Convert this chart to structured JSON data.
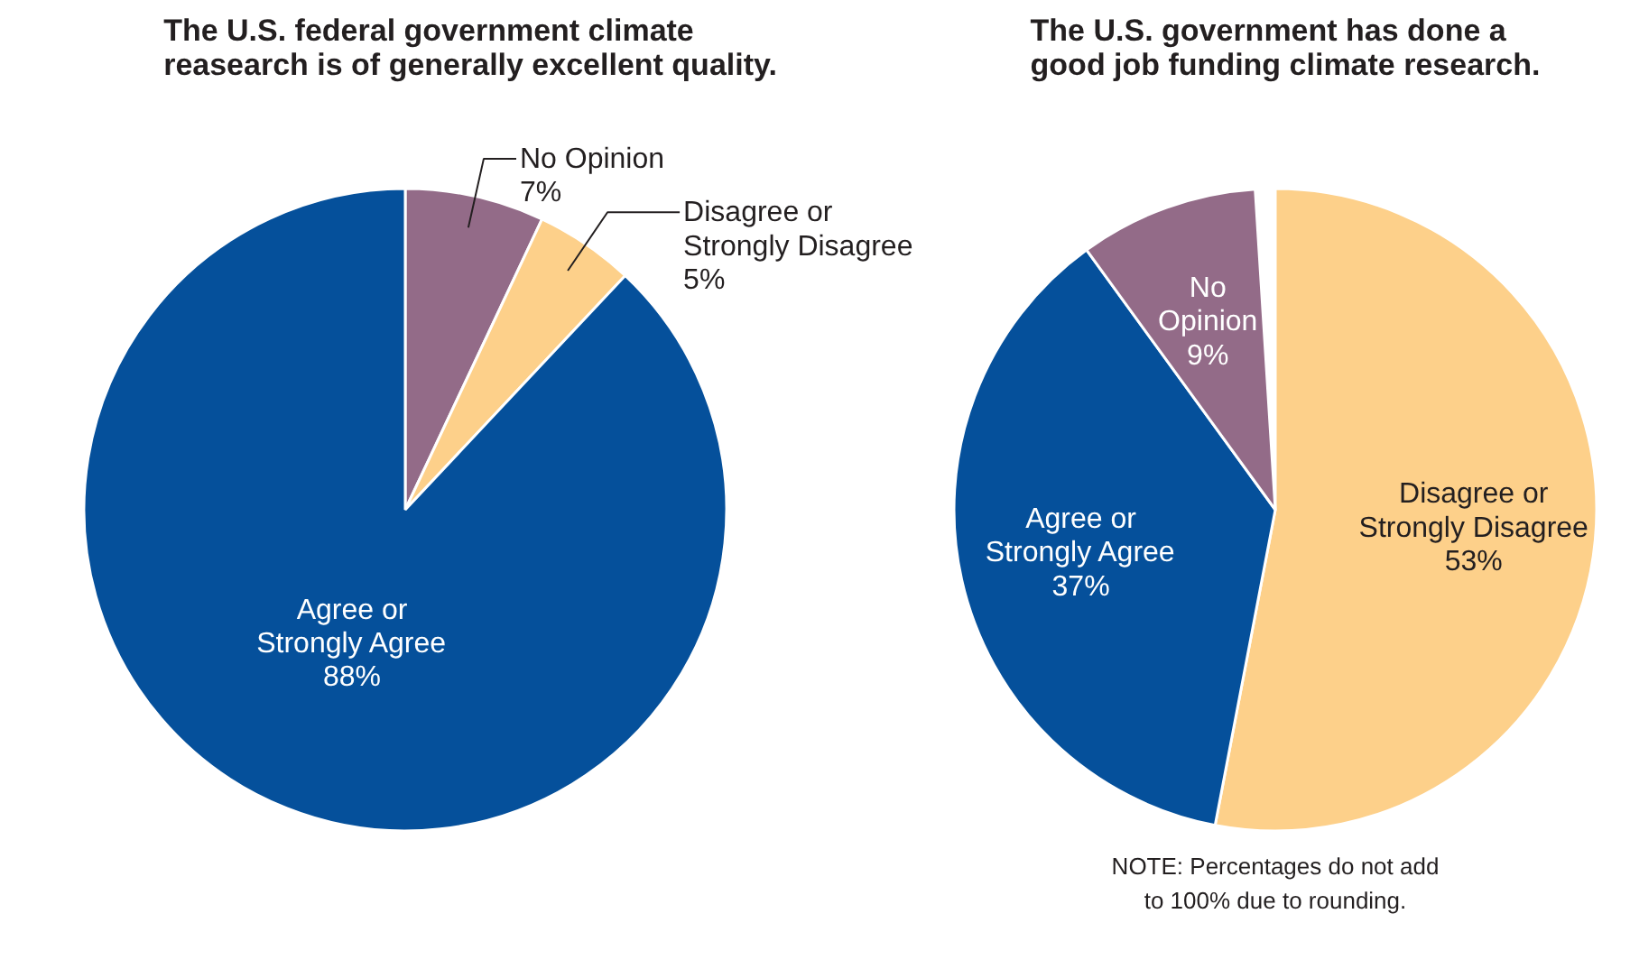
{
  "chart_data": [
    {
      "type": "pie",
      "title": "The U.S. federal government climate\nreasearch is of generally excellent quality.",
      "categories": [
        "No Opinion",
        "Disagree or\nStrongly Disagree",
        "Agree or\nStrongly Agree"
      ],
      "values": [
        7,
        5,
        88
      ],
      "colors": [
        "#936b88",
        "#fdd08a",
        "#05509b"
      ],
      "value_labels": [
        "7%",
        "5%",
        "88%"
      ]
    },
    {
      "type": "pie",
      "title": "The U.S. government has done a\ngood job funding climate research.",
      "categories": [
        "Disagree or\nStrongly Disagree",
        "Agree or\nStrongly Agree",
        "No\nOpinion"
      ],
      "values": [
        53,
        37,
        9
      ],
      "colors": [
        "#fdd08a",
        "#05509b",
        "#936b88"
      ],
      "value_labels": [
        "53%",
        "37%",
        "9%"
      ],
      "annotations": [
        "NOTE: Percentages do not add\nto 100% due to rounding."
      ]
    }
  ]
}
